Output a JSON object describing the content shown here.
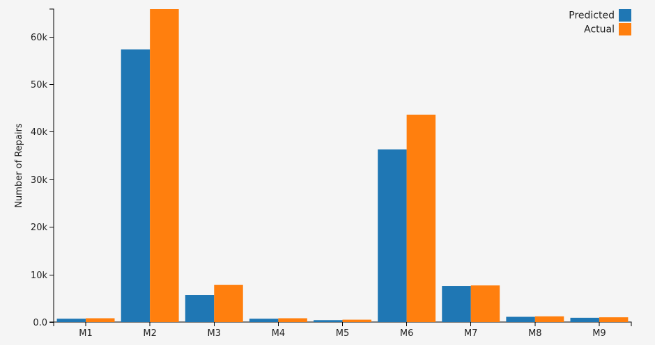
{
  "chart_data": {
    "type": "bar",
    "categories": [
      "M1",
      "M2",
      "M3",
      "M4",
      "M5",
      "M6",
      "M7",
      "M8",
      "M9"
    ],
    "series": [
      {
        "name": "Predicted",
        "color": "#1f77b4",
        "values": [
          700,
          57300,
          5700,
          700,
          400,
          36300,
          7600,
          1100,
          900
        ]
      },
      {
        "name": "Actual",
        "color": "#ff7f0e",
        "values": [
          800,
          65800,
          7800,
          800,
          500,
          43600,
          7700,
          1200,
          1000
        ]
      }
    ],
    "ylabel": "Number of Repairs",
    "xlabel": "",
    "ylim": [
      0,
      65800
    ],
    "yticks": [
      0,
      10000,
      20000,
      30000,
      40000,
      50000,
      60000
    ],
    "ytick_labels": [
      "0.0",
      "10k",
      "20k",
      "30k",
      "40k",
      "50k",
      "60k"
    ],
    "grid": false,
    "legend_position": "top-right"
  }
}
